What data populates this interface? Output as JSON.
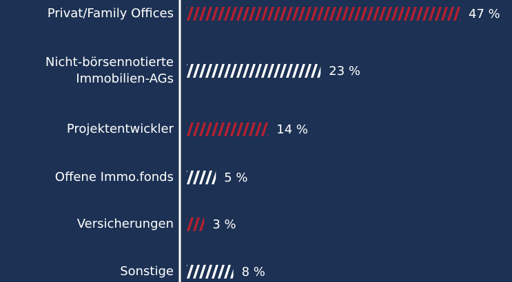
{
  "chart_data": {
    "type": "hbar",
    "categories": [
      "Privat/Family Offices",
      "Nicht-börsennotierte Immobilien-AGs",
      "Projektentwickler",
      "Offene Immo.fonds",
      "Versicherungen",
      "Sonstige"
    ],
    "values": [
      47,
      23,
      14,
      5,
      3,
      8
    ],
    "value_labels": [
      "47 %",
      "23 %",
      "14 %",
      "5 %",
      "3 %",
      "8 %"
    ],
    "colors": [
      "#b8202f",
      "#ffffff",
      "#b8202f",
      "#ffffff",
      "#b8202f",
      "#ffffff"
    ]
  }
}
